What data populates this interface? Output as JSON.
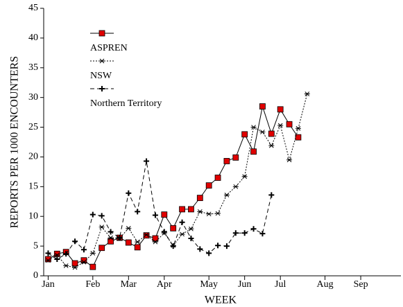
{
  "chart_data": {
    "type": "line",
    "xlabel": "WEEK",
    "ylabel": "REPORTS PER 1000 ENCOUNTERS",
    "x": [
      1,
      2,
      3,
      4,
      5,
      6,
      7,
      8,
      9,
      10,
      11,
      12,
      13,
      14,
      15,
      16,
      17,
      18,
      19,
      20,
      21,
      22,
      23,
      24,
      25,
      26,
      27,
      28,
      29,
      30
    ],
    "xlim": [
      0.5,
      40.5
    ],
    "xticks": [
      {
        "value": 1,
        "label": "Jan"
      },
      {
        "value": 6,
        "label": "Feb"
      },
      {
        "value": 10,
        "label": "Mar"
      },
      {
        "value": 14,
        "label": "Apr"
      },
      {
        "value": 19,
        "label": "May"
      },
      {
        "value": 23,
        "label": "Jun"
      },
      {
        "value": 27,
        "label": "Jul"
      },
      {
        "value": 32,
        "label": "Aug"
      },
      {
        "value": 36,
        "label": "Sep"
      }
    ],
    "ylim": [
      0,
      45
    ],
    "yticks": [
      0,
      5,
      10,
      15,
      20,
      25,
      30,
      35,
      40,
      45
    ],
    "series": [
      {
        "name": "ASPREN",
        "color": "#e00000",
        "line": "solid",
        "marker": "square",
        "values": [
          2.8,
          3.7,
          4.0,
          2.1,
          2.6,
          1.5,
          4.7,
          5.8,
          6.4,
          5.6,
          4.8,
          6.8,
          6.3,
          10.3,
          8.0,
          11.2,
          11.2,
          13.1,
          15.2,
          16.5,
          19.3,
          19.9,
          23.8,
          20.9,
          28.5,
          23.9,
          28.0,
          25.5,
          23.3,
          null
        ]
      },
      {
        "name": "NSW",
        "color": "#000000",
        "line": "dotted",
        "marker": "asterisk",
        "values": [
          2.6,
          3.5,
          1.7,
          1.4,
          2.3,
          3.8,
          8.2,
          6.4,
          6.3,
          8.0,
          5.7,
          6.9,
          5.7,
          7.2,
          5.1,
          7.0,
          7.9,
          10.8,
          10.4,
          10.5,
          13.6,
          15.0,
          16.7,
          25.0,
          24.2,
          21.9,
          25.3,
          19.5,
          24.8,
          30.6
        ]
      },
      {
        "name": "Northern Territory",
        "color": "#000000",
        "line": "dashed",
        "marker": "plus",
        "values": [
          3.8,
          2.8,
          3.7,
          5.8,
          4.4,
          10.3,
          10.1,
          7.4,
          6.4,
          13.9,
          10.8,
          19.3,
          10.2,
          7.4,
          5.0,
          9.0,
          6.3,
          4.5,
          3.8,
          5.1,
          5.0,
          7.2,
          7.2,
          7.9,
          7.1,
          13.6,
          null,
          null,
          null,
          null
        ]
      }
    ]
  }
}
